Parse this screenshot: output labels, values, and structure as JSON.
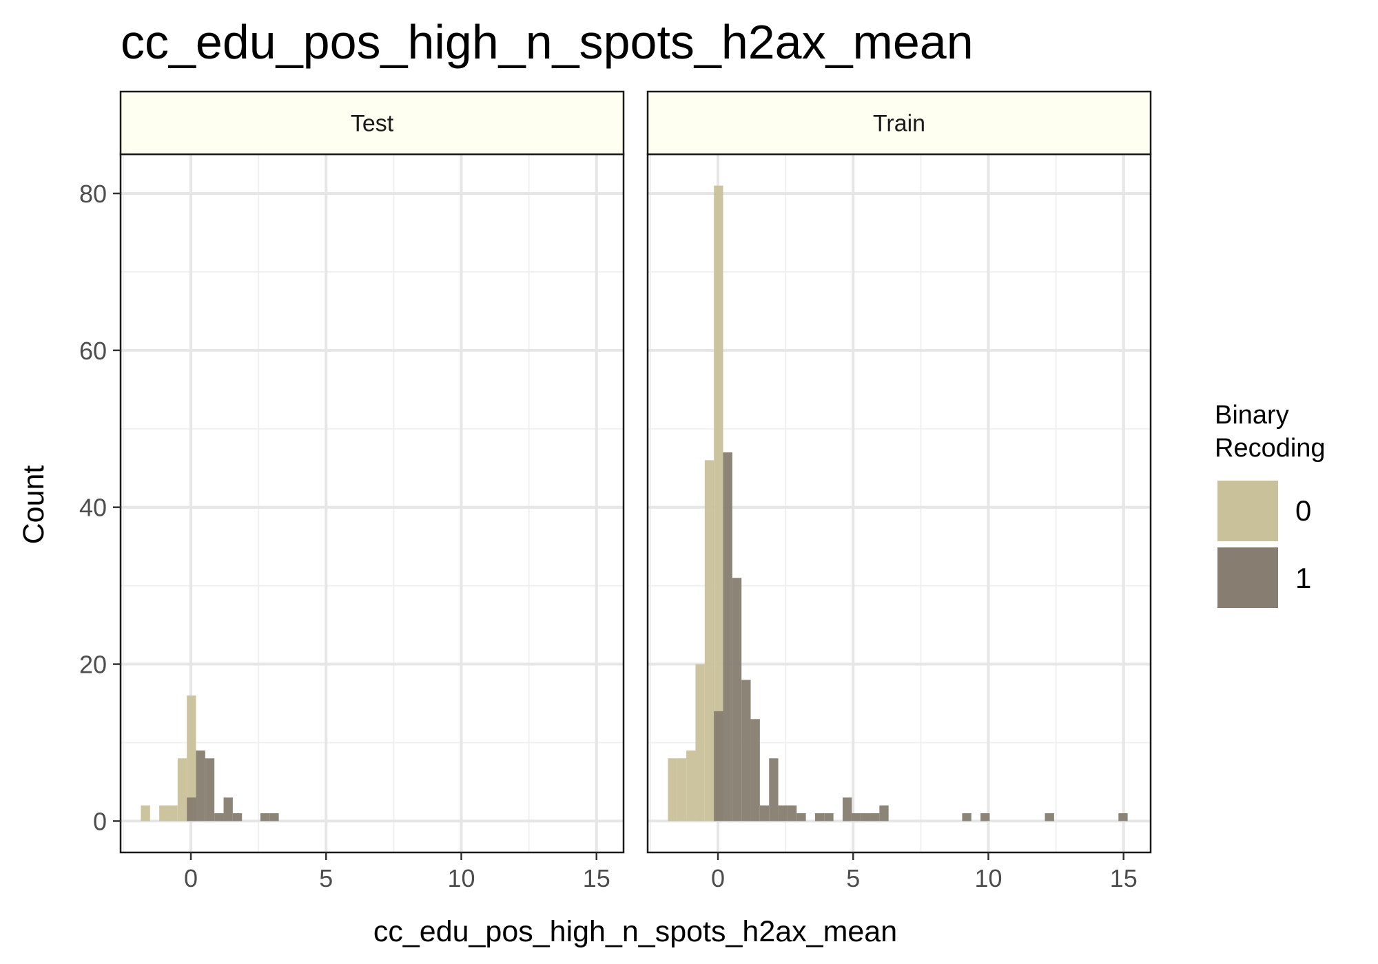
{
  "chart_data": {
    "type": "bar",
    "title": "cc_edu_pos_high_n_spots_h2ax_mean",
    "xlabel": "cc_edu_pos_high_n_spots_h2ax_mean",
    "ylabel": "Count",
    "xlim": [
      -2.6,
      16.0
    ],
    "ylim": [
      -4,
      85
    ],
    "x_ticks": [
      0,
      5,
      10,
      15
    ],
    "x_tick_labels": [
      "0",
      "5",
      "10",
      "15"
    ],
    "y_ticks": [
      0,
      20,
      40,
      60,
      80
    ],
    "y_tick_labels": [
      "0",
      "20",
      "40",
      "60",
      "80"
    ],
    "grid": true,
    "bin_width": 0.34,
    "legend": {
      "title_lines": [
        "Binary",
        "Recoding"
      ],
      "position": "right",
      "entries": [
        {
          "label": "0",
          "color": "#c9c199"
        },
        {
          "label": "1",
          "color": "#877d71"
        }
      ]
    },
    "panels": [
      {
        "name": "Test",
        "series": [
          {
            "name": "0",
            "color": "#c9c199",
            "bins": [
              [
                -1.68,
                2
              ],
              [
                -1.0,
                2
              ],
              [
                -0.66,
                2
              ],
              [
                -0.32,
                8
              ],
              [
                0.02,
                16
              ]
            ]
          },
          {
            "name": "1",
            "color": "#877d71",
            "bins": [
              [
                0.02,
                3
              ],
              [
                0.36,
                9
              ],
              [
                0.7,
                8
              ],
              [
                1.04,
                1
              ],
              [
                1.38,
                3
              ],
              [
                1.72,
                1
              ],
              [
                2.74,
                1
              ],
              [
                3.08,
                1
              ]
            ]
          }
        ]
      },
      {
        "name": "Train",
        "series": [
          {
            "name": "0",
            "color": "#c9c199",
            "bins": [
              [
                -1.68,
                8
              ],
              [
                -1.34,
                8
              ],
              [
                -1.0,
                9
              ],
              [
                -0.66,
                20
              ],
              [
                -0.32,
                46
              ],
              [
                0.02,
                81
              ]
            ]
          },
          {
            "name": "1",
            "color": "#877d71",
            "bins": [
              [
                0.02,
                14
              ],
              [
                0.36,
                47
              ],
              [
                0.7,
                31
              ],
              [
                1.04,
                18
              ],
              [
                1.38,
                13
              ],
              [
                1.72,
                2
              ],
              [
                2.06,
                8
              ],
              [
                2.4,
                2
              ],
              [
                2.74,
                2
              ],
              [
                3.08,
                1
              ],
              [
                3.76,
                1
              ],
              [
                4.1,
                1
              ],
              [
                4.78,
                3
              ],
              [
                5.12,
                1
              ],
              [
                5.46,
                1
              ],
              [
                5.8,
                1
              ],
              [
                6.14,
                2
              ],
              [
                9.2,
                1
              ],
              [
                9.88,
                1
              ],
              [
                12.26,
                1
              ],
              [
                14.98,
                1
              ]
            ]
          }
        ]
      }
    ]
  }
}
